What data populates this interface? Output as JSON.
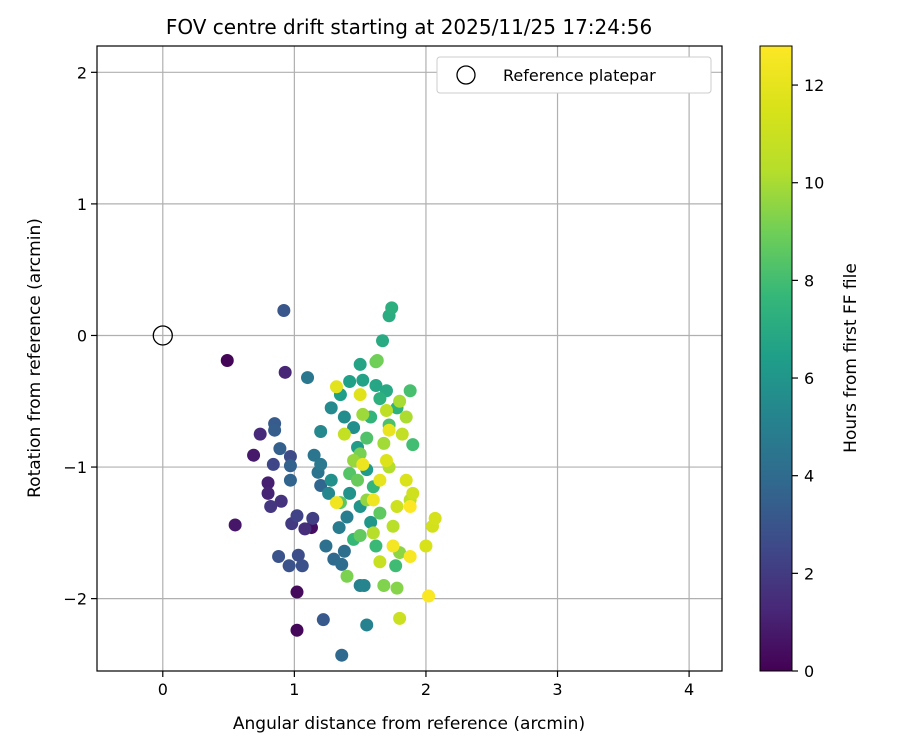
{
  "chart_data": {
    "type": "scatter",
    "title": "FOV centre drift starting at 2025/11/25 17:24:56",
    "xlabel": "Angular distance from reference (arcmin)",
    "ylabel": "Rotation from reference (arcmin)",
    "xlim": [
      -0.5,
      4.25
    ],
    "ylim": [
      -2.55,
      2.2
    ],
    "xticks": [
      0,
      1,
      2,
      3,
      4
    ],
    "yticks": [
      -2,
      -1,
      0,
      1,
      2
    ],
    "grid": true,
    "legend": {
      "label": "Reference platepar",
      "location": "upper-right"
    },
    "reference_point": {
      "x": 0,
      "y": 0,
      "label": "Reference platepar"
    },
    "colorbar": {
      "label": "Hours from first FF file",
      "min": 0,
      "max": 12.8,
      "ticks": [
        0,
        2,
        4,
        6,
        8,
        10,
        12
      ],
      "colormap": "viridis"
    },
    "points": [
      {
        "x": 0.49,
        "y": -0.19,
        "h": 0.1
      },
      {
        "x": 1.02,
        "y": -2.24,
        "h": 0.2
      },
      {
        "x": 1.02,
        "y": -1.95,
        "h": 0.3
      },
      {
        "x": 1.13,
        "y": -1.46,
        "h": 0.4
      },
      {
        "x": 0.55,
        "y": -1.44,
        "h": 0.7
      },
      {
        "x": 0.69,
        "y": -0.91,
        "h": 0.8
      },
      {
        "x": 0.8,
        "y": -1.12,
        "h": 1.0
      },
      {
        "x": 0.8,
        "y": -1.2,
        "h": 1.1
      },
      {
        "x": 0.93,
        "y": -0.28,
        "h": 1.2
      },
      {
        "x": 0.74,
        "y": -0.75,
        "h": 1.4
      },
      {
        "x": 1.08,
        "y": -1.47,
        "h": 1.5
      },
      {
        "x": 0.9,
        "y": -1.26,
        "h": 1.7
      },
      {
        "x": 0.82,
        "y": -1.3,
        "h": 1.8
      },
      {
        "x": 0.98,
        "y": -1.43,
        "h": 2.0
      },
      {
        "x": 1.14,
        "y": -1.39,
        "h": 2.1
      },
      {
        "x": 1.02,
        "y": -1.37,
        "h": 2.3
      },
      {
        "x": 0.84,
        "y": -0.98,
        "h": 2.4
      },
      {
        "x": 0.97,
        "y": -0.92,
        "h": 2.6
      },
      {
        "x": 1.03,
        "y": -1.67,
        "h": 2.7
      },
      {
        "x": 1.06,
        "y": -1.75,
        "h": 2.8
      },
      {
        "x": 0.96,
        "y": -1.75,
        "h": 2.9
      },
      {
        "x": 0.88,
        "y": -1.68,
        "h": 3.0
      },
      {
        "x": 0.92,
        "y": 0.19,
        "h": 3.1
      },
      {
        "x": 1.22,
        "y": -2.16,
        "h": 3.2
      },
      {
        "x": 0.85,
        "y": -0.67,
        "h": 3.3
      },
      {
        "x": 0.85,
        "y": -0.72,
        "h": 3.4
      },
      {
        "x": 0.89,
        "y": -0.86,
        "h": 3.5
      },
      {
        "x": 0.97,
        "y": -0.99,
        "h": 3.6
      },
      {
        "x": 0.97,
        "y": -1.1,
        "h": 3.7
      },
      {
        "x": 1.2,
        "y": -1.14,
        "h": 3.8
      },
      {
        "x": 1.36,
        "y": -2.43,
        "h": 3.9
      },
      {
        "x": 1.3,
        "y": -1.7,
        "h": 4.0
      },
      {
        "x": 1.36,
        "y": -1.74,
        "h": 4.1
      },
      {
        "x": 1.38,
        "y": -1.64,
        "h": 4.2
      },
      {
        "x": 1.24,
        "y": -1.6,
        "h": 4.3
      },
      {
        "x": 1.18,
        "y": -1.04,
        "h": 4.4
      },
      {
        "x": 1.15,
        "y": -0.91,
        "h": 4.5
      },
      {
        "x": 1.1,
        "y": -0.32,
        "h": 4.6
      },
      {
        "x": 1.2,
        "y": -0.98,
        "h": 4.7
      },
      {
        "x": 1.34,
        "y": -1.46,
        "h": 4.8
      },
      {
        "x": 1.4,
        "y": -1.38,
        "h": 4.9
      },
      {
        "x": 1.5,
        "y": -1.9,
        "h": 5.0
      },
      {
        "x": 1.55,
        "y": -2.2,
        "h": 5.1
      },
      {
        "x": 1.53,
        "y": -1.9,
        "h": 5.2
      },
      {
        "x": 1.26,
        "y": -1.2,
        "h": 5.3
      },
      {
        "x": 1.2,
        "y": -0.73,
        "h": 5.4
      },
      {
        "x": 1.28,
        "y": -0.55,
        "h": 5.5
      },
      {
        "x": 1.38,
        "y": -0.62,
        "h": 5.6
      },
      {
        "x": 1.45,
        "y": -0.7,
        "h": 5.7
      },
      {
        "x": 1.28,
        "y": -1.1,
        "h": 5.8
      },
      {
        "x": 1.42,
        "y": -1.2,
        "h": 5.9
      },
      {
        "x": 1.5,
        "y": -1.3,
        "h": 6.0
      },
      {
        "x": 1.58,
        "y": -1.42,
        "h": 6.1
      },
      {
        "x": 1.55,
        "y": -1.02,
        "h": 6.2
      },
      {
        "x": 1.48,
        "y": -0.85,
        "h": 6.3
      },
      {
        "x": 1.35,
        "y": -0.45,
        "h": 6.4
      },
      {
        "x": 1.42,
        "y": -0.35,
        "h": 6.5
      },
      {
        "x": 1.52,
        "y": -0.34,
        "h": 6.6
      },
      {
        "x": 1.5,
        "y": -0.22,
        "h": 6.7
      },
      {
        "x": 1.62,
        "y": -0.38,
        "h": 6.8
      },
      {
        "x": 1.7,
        "y": -0.42,
        "h": 6.9
      },
      {
        "x": 1.67,
        "y": -0.04,
        "h": 7.0
      },
      {
        "x": 1.72,
        "y": 0.15,
        "h": 7.1
      },
      {
        "x": 1.74,
        "y": 0.21,
        "h": 7.2
      },
      {
        "x": 1.65,
        "y": -0.48,
        "h": 7.3
      },
      {
        "x": 1.78,
        "y": -0.55,
        "h": 7.4
      },
      {
        "x": 1.58,
        "y": -0.62,
        "h": 7.5
      },
      {
        "x": 1.6,
        "y": -1.15,
        "h": 7.6
      },
      {
        "x": 1.45,
        "y": -1.55,
        "h": 7.7
      },
      {
        "x": 1.62,
        "y": -1.6,
        "h": 7.8
      },
      {
        "x": 1.77,
        "y": -1.75,
        "h": 7.9
      },
      {
        "x": 1.9,
        "y": -0.83,
        "h": 8.0
      },
      {
        "x": 1.88,
        "y": -0.42,
        "h": 8.1
      },
      {
        "x": 1.72,
        "y": -0.68,
        "h": 8.2
      },
      {
        "x": 1.55,
        "y": -0.78,
        "h": 8.3
      },
      {
        "x": 1.42,
        "y": -1.05,
        "h": 8.4
      },
      {
        "x": 1.35,
        "y": -1.27,
        "h": 8.5
      },
      {
        "x": 1.65,
        "y": -1.35,
        "h": 8.6
      },
      {
        "x": 1.5,
        "y": -1.52,
        "h": 8.7
      },
      {
        "x": 1.48,
        "y": -1.1,
        "h": 8.8
      },
      {
        "x": 1.62,
        "y": -0.2,
        "h": 8.9
      },
      {
        "x": 1.63,
        "y": -0.19,
        "h": 9.0
      },
      {
        "x": 1.5,
        "y": -0.9,
        "h": 9.1
      },
      {
        "x": 1.4,
        "y": -1.83,
        "h": 9.2
      },
      {
        "x": 1.68,
        "y": -1.9,
        "h": 9.3
      },
      {
        "x": 1.78,
        "y": -1.92,
        "h": 9.4
      },
      {
        "x": 1.8,
        "y": -1.65,
        "h": 9.5
      },
      {
        "x": 1.55,
        "y": -1.25,
        "h": 9.6
      },
      {
        "x": 1.45,
        "y": -0.95,
        "h": 9.7
      },
      {
        "x": 1.52,
        "y": -0.6,
        "h": 9.8
      },
      {
        "x": 1.68,
        "y": -0.82,
        "h": 9.9
      },
      {
        "x": 1.8,
        "y": -0.5,
        "h": 10.0
      },
      {
        "x": 1.85,
        "y": -0.62,
        "h": 10.1
      },
      {
        "x": 1.72,
        "y": -1.0,
        "h": 10.2
      },
      {
        "x": 1.6,
        "y": -1.5,
        "h": 10.3
      },
      {
        "x": 1.75,
        "y": -1.45,
        "h": 10.4
      },
      {
        "x": 1.88,
        "y": -1.25,
        "h": 10.5
      },
      {
        "x": 1.7,
        "y": -0.57,
        "h": 10.6
      },
      {
        "x": 1.82,
        "y": -0.75,
        "h": 10.7
      },
      {
        "x": 1.38,
        "y": -0.75,
        "h": 10.8
      },
      {
        "x": 1.65,
        "y": -1.72,
        "h": 10.9
      },
      {
        "x": 1.8,
        "y": -2.15,
        "h": 11.0
      },
      {
        "x": 1.78,
        "y": -1.3,
        "h": 11.1
      },
      {
        "x": 1.9,
        "y": -1.2,
        "h": 11.2
      },
      {
        "x": 2.05,
        "y": -1.45,
        "h": 11.3
      },
      {
        "x": 2.07,
        "y": -1.39,
        "h": 11.4
      },
      {
        "x": 2.0,
        "y": -1.6,
        "h": 11.5
      },
      {
        "x": 1.85,
        "y": -1.1,
        "h": 11.6
      },
      {
        "x": 1.7,
        "y": -0.95,
        "h": 11.7
      },
      {
        "x": 1.5,
        "y": -0.45,
        "h": 11.8
      },
      {
        "x": 1.32,
        "y": -0.39,
        "h": 11.9
      },
      {
        "x": 1.65,
        "y": -1.1,
        "h": 12.0
      },
      {
        "x": 1.72,
        "y": -0.72,
        "h": 12.1
      },
      {
        "x": 1.52,
        "y": -0.98,
        "h": 12.2
      },
      {
        "x": 1.6,
        "y": -1.25,
        "h": 12.3
      },
      {
        "x": 1.32,
        "y": -1.27,
        "h": 12.4
      },
      {
        "x": 1.75,
        "y": -1.6,
        "h": 12.5
      },
      {
        "x": 1.88,
        "y": -1.68,
        "h": 12.6
      },
      {
        "x": 2.02,
        "y": -1.98,
        "h": 12.7
      },
      {
        "x": 1.88,
        "y": -1.3,
        "h": 12.8
      }
    ]
  }
}
